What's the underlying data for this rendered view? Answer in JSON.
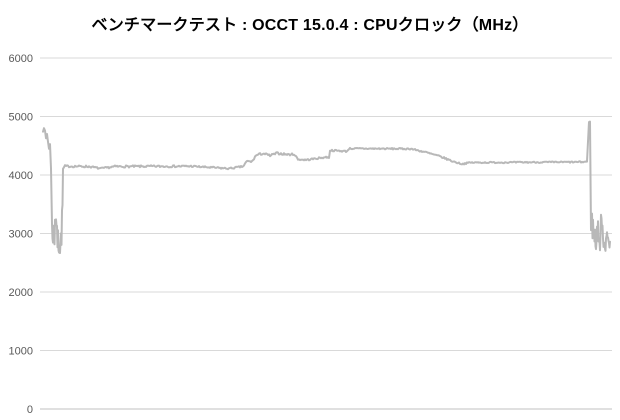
{
  "chart_data": {
    "type": "line",
    "title": "ベンチマークテスト : OCCT 15.0.4 : CPUクロック（MHz）",
    "xlabel": "",
    "ylabel": "",
    "ylim": [
      0,
      6000
    ],
    "yticks": [
      0,
      1000,
      2000,
      3000,
      4000,
      5000,
      6000
    ],
    "x_axis_labels": "none",
    "legend": "none",
    "grid": "horizontal",
    "colors": {
      "line": "#b8b8b8",
      "gridline": "#d9d9d9",
      "baseline": "#c0c0c0",
      "tick_label": "#595959",
      "title": "#000000",
      "background": "#ffffff"
    },
    "series": [
      {
        "name": "CPUクロック",
        "unit": "MHz",
        "x_range": [
          0,
          567
        ],
        "key_levels": {
          "start_peak": 4830,
          "initial_dip_band": [
            2700,
            3300
          ],
          "first_plateau": 4150,
          "mid_humps": [
            4330,
            4375
          ],
          "high_plateau": 4450,
          "second_plateau": 4210,
          "end_spike": 4900,
          "end_dip_band": [
            2750,
            3250
          ]
        },
        "segments": [
          [
            0,
            1,
            4760,
            4830,
            20
          ],
          [
            1,
            3,
            4830,
            4620,
            35
          ],
          [
            3,
            4,
            4620,
            4700,
            20
          ],
          [
            4,
            6,
            4700,
            4450,
            35
          ],
          [
            6,
            7,
            4450,
            4560,
            20
          ],
          [
            7,
            9,
            4560,
            3650,
            60
          ],
          [
            9,
            12,
            3050,
            2950,
            250
          ],
          [
            12,
            14,
            3280,
            3180,
            170
          ],
          [
            14,
            17,
            2900,
            2820,
            240
          ],
          [
            17,
            19,
            2750,
            3050,
            200
          ],
          [
            19,
            20,
            3300,
            3650,
            120
          ],
          [
            20,
            22,
            4100,
            4150,
            25
          ],
          [
            22,
            46,
            4150,
            4145,
            18
          ],
          [
            46,
            58,
            4145,
            4110,
            16
          ],
          [
            58,
            72,
            4110,
            4145,
            16
          ],
          [
            72,
            148,
            4145,
            4150,
            18
          ],
          [
            148,
            186,
            4150,
            4110,
            15
          ],
          [
            186,
            200,
            4110,
            4145,
            15
          ],
          [
            200,
            204,
            4145,
            4235,
            18
          ],
          [
            204,
            209,
            4235,
            4228,
            16
          ],
          [
            209,
            213,
            4228,
            4335,
            18
          ],
          [
            213,
            220,
            4335,
            4370,
            20
          ],
          [
            220,
            227,
            4370,
            4330,
            20
          ],
          [
            227,
            234,
            4330,
            4372,
            20
          ],
          [
            234,
            246,
            4372,
            4348,
            18
          ],
          [
            246,
            251,
            4348,
            4358,
            16
          ],
          [
            251,
            255,
            4358,
            4268,
            16
          ],
          [
            255,
            263,
            4268,
            4258,
            14
          ],
          [
            263,
            283,
            4258,
            4305,
            14
          ],
          [
            283,
            286,
            4305,
            4298,
            13
          ],
          [
            286,
            287,
            4298,
            4430,
            12
          ],
          [
            287,
            304,
            4422,
            4405,
            14
          ],
          [
            304,
            306,
            4405,
            4452,
            12
          ],
          [
            306,
            368,
            4452,
            4448,
            13
          ],
          [
            368,
            382,
            4448,
            4392,
            15
          ],
          [
            382,
            398,
            4392,
            4312,
            15
          ],
          [
            398,
            410,
            4312,
            4232,
            15
          ],
          [
            410,
            419,
            4232,
            4188,
            13
          ],
          [
            419,
            427,
            4188,
            4212,
            13
          ],
          [
            427,
            540,
            4212,
            4222,
            12
          ],
          [
            540,
            544,
            4222,
            4232,
            11
          ],
          [
            544,
            546,
            4232,
            4900,
            15
          ],
          [
            546,
            547,
            4900,
            4858,
            25
          ],
          [
            547,
            548,
            4858,
            3450,
            80
          ],
          [
            548,
            551,
            3250,
            3000,
            240
          ],
          [
            551,
            554,
            2950,
            2870,
            230
          ],
          [
            554,
            556,
            3080,
            3000,
            180
          ],
          [
            556,
            558,
            2860,
            2830,
            200
          ],
          [
            558,
            560,
            3200,
            3230,
            140
          ],
          [
            560,
            563,
            2880,
            2850,
            190
          ],
          [
            563,
            567,
            2920,
            2860,
            130
          ]
        ]
      }
    ]
  }
}
